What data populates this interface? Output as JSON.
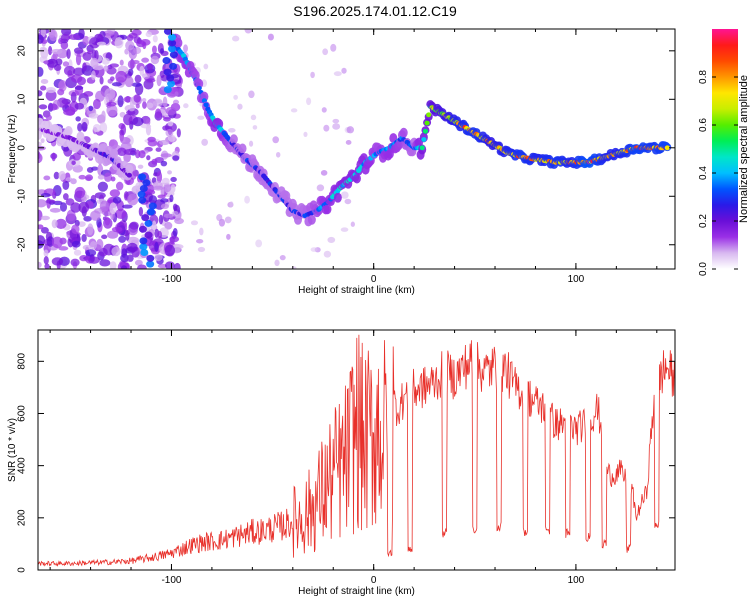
{
  "title": "S196.2025.174.01.12.C19",
  "chart_data": [
    {
      "type": "heatmap",
      "title": "S196.2025.174.01.12.C19",
      "xlabel": "Height of straight line (km)",
      "ylabel": "Frequency (Hz)",
      "xlim": [
        -166,
        149
      ],
      "ylim": [
        -25,
        24.5
      ],
      "x_ticks": [
        -100,
        0,
        100
      ],
      "y_ticks": [
        -20,
        -10,
        0,
        10,
        20
      ],
      "x_tick_labels": [
        "-100",
        "0",
        "100"
      ],
      "y_tick_labels": [
        "-20",
        "-10",
        "0",
        "10",
        "20"
      ],
      "colorbar": {
        "label": "Normalized spectral amplitude",
        "range": [
          0,
          1
        ],
        "ticks": [
          0,
          0.2,
          0.4,
          0.6,
          0.8
        ],
        "tick_labels": [
          "0.0",
          "0.2",
          "0.4",
          "0.6",
          "0.8"
        ],
        "colors": [
          "#ffffff",
          "#d8b8f0",
          "#9a30e6",
          "#6a0fd8",
          "#2a1ae8",
          "#0055ff",
          "#00bfff",
          "#00e6c8",
          "#00ee55",
          "#55ee00",
          "#c8ee00",
          "#ffe600",
          "#ff9600",
          "#ff4a00",
          "#ff1a1a",
          "#ff1493"
        ]
      },
      "ridge": [
        {
          "x": -166,
          "y": 4,
          "amp": 0.15
        },
        {
          "x": -150,
          "y": 2,
          "amp": 0.18
        },
        {
          "x": -140,
          "y": 0,
          "amp": 0.2
        },
        {
          "x": -130,
          "y": -2,
          "amp": 0.25
        },
        {
          "x": -120,
          "y": -6,
          "amp": 0.2
        },
        {
          "x": -112,
          "y": -22,
          "amp": 0.35
        },
        {
          "x": -100,
          "y": 22,
          "amp": 0.3
        },
        {
          "x": -94,
          "y": 19,
          "amp": 0.4
        },
        {
          "x": -88,
          "y": 14,
          "amp": 0.35
        },
        {
          "x": -82,
          "y": 8,
          "amp": 0.35
        },
        {
          "x": -78,
          "y": 5,
          "amp": 0.45
        },
        {
          "x": -70,
          "y": 1,
          "amp": 0.3
        },
        {
          "x": -64,
          "y": -2,
          "amp": 0.3
        },
        {
          "x": -56,
          "y": -5,
          "amp": 0.3
        },
        {
          "x": -48,
          "y": -9,
          "amp": 0.28
        },
        {
          "x": -40,
          "y": -13,
          "amp": 0.3
        },
        {
          "x": -34,
          "y": -14,
          "amp": 0.3
        },
        {
          "x": -28,
          "y": -13,
          "amp": 0.35
        },
        {
          "x": -22,
          "y": -11,
          "amp": 0.4
        },
        {
          "x": -16,
          "y": -8,
          "amp": 0.45
        },
        {
          "x": -10,
          "y": -6,
          "amp": 0.45
        },
        {
          "x": -4,
          "y": -3,
          "amp": 0.42
        },
        {
          "x": 2,
          "y": -1,
          "amp": 0.35
        },
        {
          "x": 8,
          "y": 0,
          "amp": 0.4
        },
        {
          "x": 14,
          "y": 2,
          "amp": 0.35
        },
        {
          "x": 20,
          "y": 0,
          "amp": 0.3
        },
        {
          "x": 24,
          "y": 0,
          "amp": 0.5
        },
        {
          "x": 28,
          "y": 8.5,
          "amp": 0.6
        },
        {
          "x": 34,
          "y": 7,
          "amp": 0.7
        },
        {
          "x": 42,
          "y": 5,
          "amp": 0.8
        },
        {
          "x": 50,
          "y": 3,
          "amp": 0.85
        },
        {
          "x": 58,
          "y": 1,
          "amp": 0.75
        },
        {
          "x": 66,
          "y": -1,
          "amp": 0.8
        },
        {
          "x": 74,
          "y": -2,
          "amp": 0.85
        },
        {
          "x": 82,
          "y": -2.5,
          "amp": 0.8
        },
        {
          "x": 90,
          "y": -3,
          "amp": 0.85
        },
        {
          "x": 98,
          "y": -3,
          "amp": 0.8
        },
        {
          "x": 106,
          "y": -3,
          "amp": 0.95
        },
        {
          "x": 114,
          "y": -2,
          "amp": 0.8
        },
        {
          "x": 122,
          "y": -1,
          "amp": 0.8
        },
        {
          "x": 130,
          "y": 0,
          "amp": 0.9
        },
        {
          "x": 138,
          "y": 0,
          "amp": 0.85
        },
        {
          "x": 146,
          "y": 0,
          "amp": 0.9
        }
      ]
    },
    {
      "type": "line",
      "xlabel": "Height of straight line (km)",
      "ylabel": "SNR (10 * v/v)",
      "xlim": [
        -166,
        149
      ],
      "ylim": [
        0,
        920
      ],
      "x_ticks": [
        -100,
        0,
        100
      ],
      "y_ticks": [
        0,
        200,
        400,
        600,
        800
      ],
      "x_tick_labels": [
        "-100",
        "0",
        "100"
      ],
      "y_tick_labels": [
        "0",
        "200",
        "400",
        "600",
        "800"
      ],
      "series": [
        {
          "color": "#e8302a",
          "x": [
            -166,
            -150,
            -140,
            -130,
            -120,
            -112,
            -105,
            -100,
            -95,
            -90,
            -85,
            -80,
            -75,
            -70,
            -65,
            -60,
            -55,
            -50,
            -45,
            -40,
            -35,
            -30,
            -25,
            -20,
            -15,
            -12,
            -10,
            -8,
            -5,
            -2,
            0,
            2,
            5,
            8,
            10,
            12,
            15,
            18,
            20,
            25,
            30,
            35,
            40,
            45,
            48,
            50,
            55,
            60,
            65,
            70,
            75,
            80,
            85,
            88,
            90,
            95,
            100,
            105,
            108,
            110,
            112,
            115,
            118,
            120,
            122,
            125,
            128,
            130,
            132,
            135,
            138,
            140,
            142,
            145,
            149
          ],
          "y": [
            25,
            25,
            28,
            30,
            35,
            45,
            55,
            65,
            80,
            95,
            105,
            110,
            115,
            125,
            135,
            145,
            150,
            160,
            170,
            185,
            200,
            240,
            300,
            360,
            400,
            450,
            520,
            560,
            480,
            500,
            520,
            560,
            520,
            540,
            640,
            620,
            660,
            680,
            690,
            700,
            720,
            760,
            740,
            780,
            800,
            790,
            760,
            780,
            770,
            700,
            680,
            640,
            620,
            580,
            560,
            560,
            540,
            560,
            590,
            620,
            580,
            380,
            360,
            370,
            380,
            340,
            300,
            200,
            250,
            300,
            600,
            700,
            750,
            780,
            720
          ],
          "dips": [
            {
              "x": 8,
              "y": 40
            },
            {
              "x": 18,
              "y": 60
            },
            {
              "x": 35,
              "y": 120
            },
            {
              "x": 50,
              "y": 140
            },
            {
              "x": 62,
              "y": 150
            },
            {
              "x": 75,
              "y": 130
            },
            {
              "x": 86,
              "y": 130
            },
            {
              "x": 96,
              "y": 120
            },
            {
              "x": 106,
              "y": 110
            },
            {
              "x": 114,
              "y": 80
            },
            {
              "x": 126,
              "y": 60
            },
            {
              "x": 140,
              "y": 150
            }
          ]
        }
      ]
    }
  ]
}
